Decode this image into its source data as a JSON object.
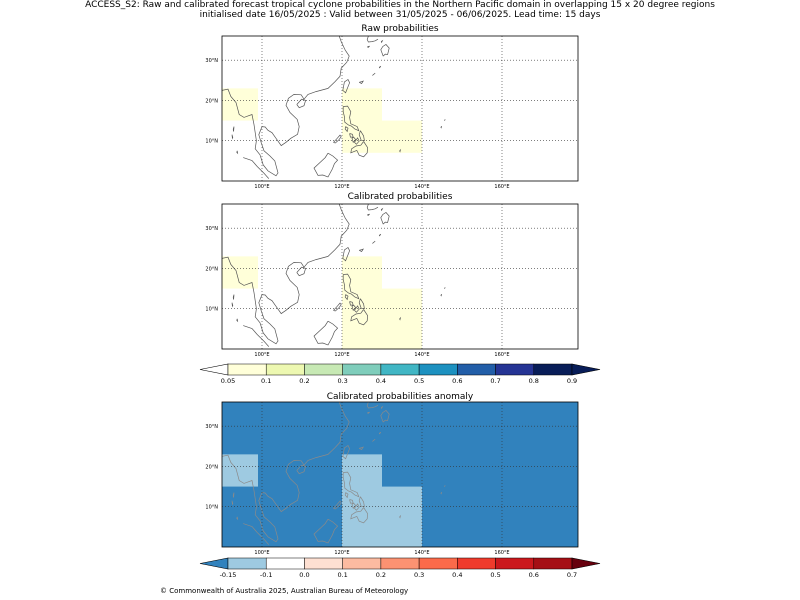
{
  "header": {
    "title_line1": "ACCESS_S2: Raw and calibrated forecast tropical cyclone probabilities in the Northern Pacific domain in overlapping 15 x 20 degree regions",
    "title_line2": "initialised date 16/05/2025 :  Valid between 31/05/2025 - 06/06/2025. Lead time: 15 days"
  },
  "panels": [
    {
      "title": "Raw probabilities",
      "background": "#ffffff",
      "regions": [
        {
          "lon": [
            90,
            99
          ],
          "lat": [
            15,
            23
          ],
          "color": "#ffffd9"
        },
        {
          "lon": [
            120,
            130
          ],
          "lat": [
            7,
            23
          ],
          "color": "#ffffd9"
        },
        {
          "lon": [
            130,
            140
          ],
          "lat": [
            7,
            15
          ],
          "color": "#ffffd9"
        }
      ]
    },
    {
      "title": "Calibrated probabilities",
      "background": "#ffffff",
      "regions": [
        {
          "lon": [
            90,
            99
          ],
          "lat": [
            15,
            23
          ],
          "color": "#ffffd9"
        },
        {
          "lon": [
            120,
            130
          ],
          "lat": [
            0,
            23
          ],
          "color": "#ffffd9"
        },
        {
          "lon": [
            130,
            140
          ],
          "lat": [
            0,
            15
          ],
          "color": "#ffffd9"
        }
      ]
    },
    {
      "title": "Calibrated probabilities anomaly",
      "background": "#3182bd",
      "regions": [
        {
          "lon": [
            90,
            99
          ],
          "lat": [
            15,
            23
          ],
          "color": "#9ecae1"
        },
        {
          "lon": [
            120,
            130
          ],
          "lat": [
            0,
            23
          ],
          "color": "#9ecae1"
        },
        {
          "lon": [
            130,
            140
          ],
          "lat": [
            0,
            15
          ],
          "color": "#9ecae1"
        }
      ]
    }
  ],
  "axes": {
    "lon_range": [
      90,
      179
    ],
    "lat_range": [
      0,
      36
    ],
    "lon_ticks": [
      {
        "v": 100,
        "label": "100°E"
      },
      {
        "v": 120,
        "label": "120°E"
      },
      {
        "v": 140,
        "label": "140°E"
      },
      {
        "v": 160,
        "label": "160°E"
      }
    ],
    "lat_ticks": [
      {
        "v": 10,
        "label": "10°N"
      },
      {
        "v": 20,
        "label": "20°N"
      },
      {
        "v": 30,
        "label": "30°N"
      }
    ]
  },
  "colorbars": {
    "probability": {
      "labels": [
        "0.05",
        "0.1",
        "0.2",
        "0.3",
        "0.4",
        "0.5",
        "0.6",
        "0.7",
        "0.8",
        "0.9"
      ],
      "colors": [
        "#ffffd9",
        "#edf8b1",
        "#c7e9b4",
        "#7fcdbb",
        "#41b6c4",
        "#1d91c0",
        "#225ea8",
        "#253494",
        "#081d58"
      ],
      "under": "#ffffff",
      "over": "#081d58"
    },
    "anomaly": {
      "labels": [
        "-0.15",
        "-0.1",
        "0.0",
        "0.1",
        "0.2",
        "0.3",
        "0.4",
        "0.5",
        "0.6",
        "0.7"
      ],
      "colors": [
        "#9ecae1",
        "#ffffff",
        "#fee0d2",
        "#fcbba1",
        "#fc9272",
        "#fb6a4a",
        "#ef3b2c",
        "#cb181d",
        "#a50f15"
      ],
      "under": "#3182bd",
      "over": "#67000d"
    }
  },
  "footer": {
    "copyright": "© Commonwealth of Australia 2025, Australian Bureau of Meteorology"
  }
}
